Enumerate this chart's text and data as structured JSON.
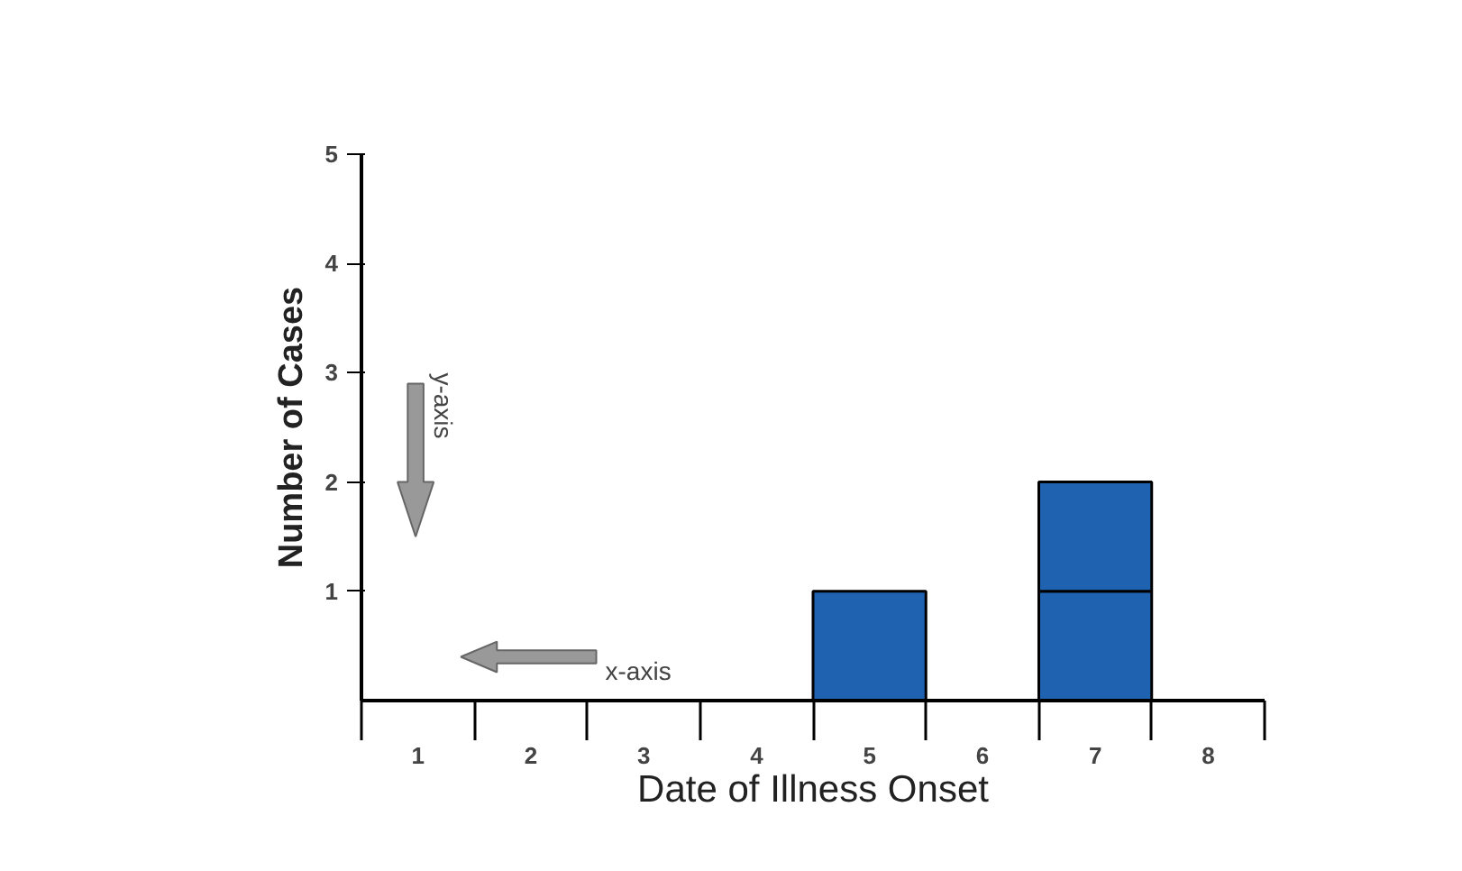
{
  "chart_data": {
    "type": "bar",
    "xlabel": "Date of Illness Onset",
    "ylabel": "Number of Cases",
    "categories": [
      "1",
      "2",
      "3",
      "4",
      "5",
      "6",
      "7",
      "8"
    ],
    "stacked": true,
    "series": [
      {
        "color": "#1f63b0",
        "values": [
          0,
          0,
          0,
          0,
          1,
          0,
          1,
          0
        ]
      },
      {
        "color": "#1f63b0",
        "values": [
          0,
          0,
          0,
          0,
          0,
          0,
          1,
          0
        ]
      }
    ],
    "ylim": [
      0,
      5
    ],
    "yticks": [
      1,
      2,
      3,
      4,
      5
    ],
    "grid": false,
    "annotations": [
      "y-axis",
      "x-axis"
    ]
  }
}
